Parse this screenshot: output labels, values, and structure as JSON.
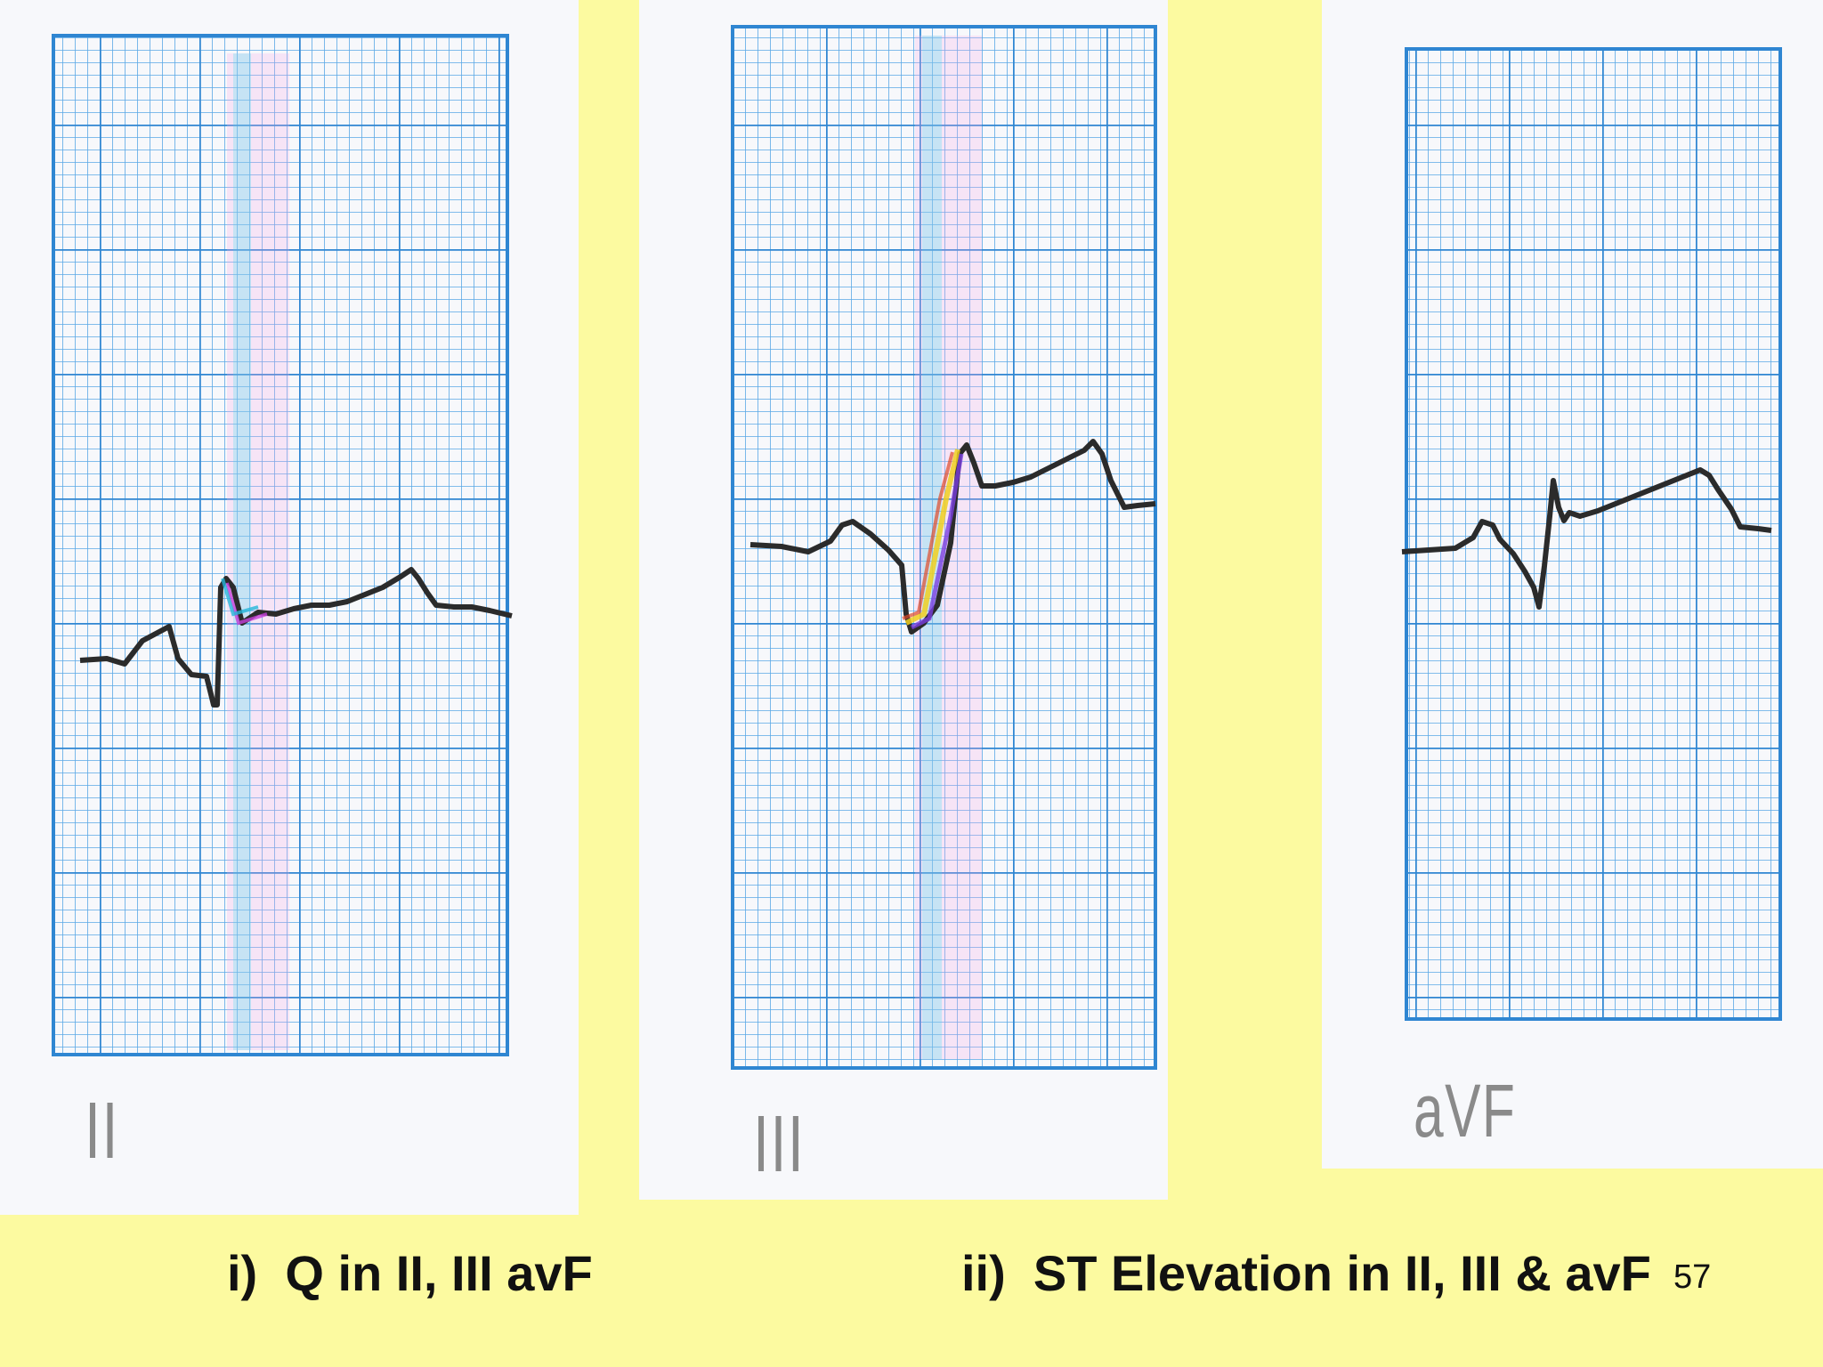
{
  "leads": [
    {
      "label": "II"
    },
    {
      "label": "III"
    },
    {
      "label": "aVF"
    }
  ],
  "captions": {
    "left": "i)  Q in II, III avF",
    "right": "ii)  ST Elevation in II, III & avF"
  },
  "page_number": "57",
  "colors": {
    "background": "#fcfaa0",
    "grid": "#3a8ed6",
    "trace": "#2b2b2b"
  }
}
